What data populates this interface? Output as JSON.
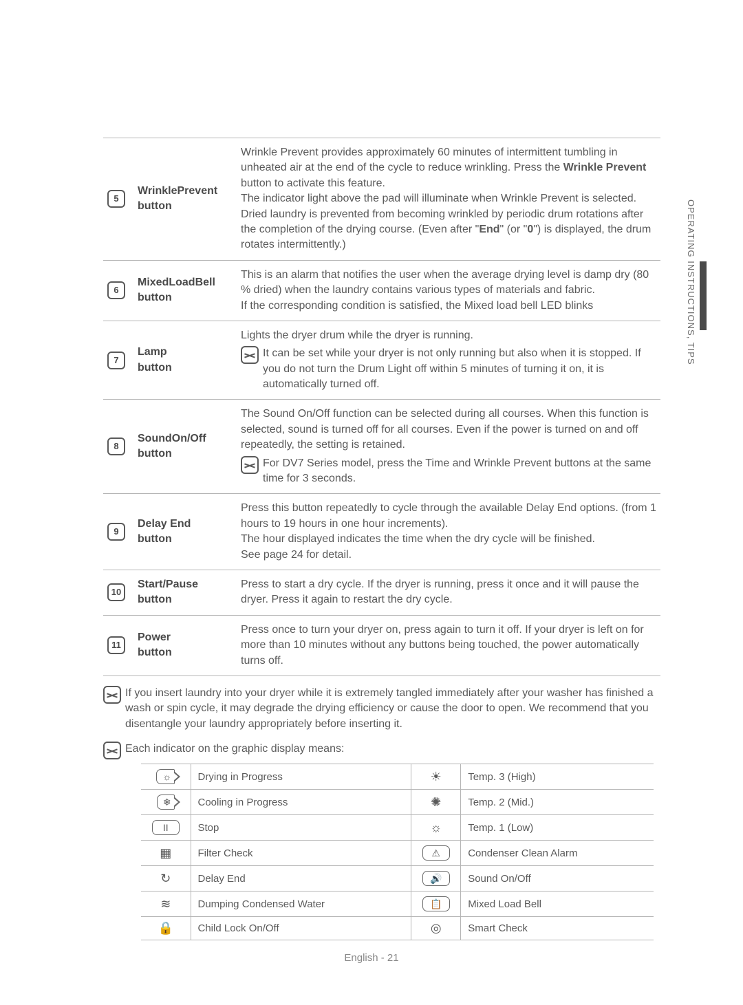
{
  "side_label": "OPERATING INSTRUCTIONS, TIPS",
  "buttons": [
    {
      "num": "5",
      "label": "WrinklePrevent button",
      "desc_html": "Wrinkle Prevent provides approximately 60 minutes of intermittent tumbling in unheated air at the end of the cycle to reduce wrinkling. Press the <b>Wrinkle Prevent</b> button to activate this feature.<br>The indicator light above the pad will illuminate when Wrinkle Prevent is selected. Dried laundry is prevented from becoming wrinkled by periodic drum rotations after the completion of the drying course. (Even after \"<b>End</b>\" (or \"<b>0</b>\") is displayed, the drum rotates intermittently.)"
    },
    {
      "num": "6",
      "label": "MixedLoadBell button",
      "desc_html": "This is an alarm that notifies the user when the average drying level is damp dry (80 % dried) when the laundry contains various types of materials and fabric.<br>If the corresponding condition is satisfied, the Mixed load bell LED blinks"
    },
    {
      "num": "7",
      "label": "Lamp button",
      "desc_html": "Lights the dryer drum while the dryer is running.",
      "note": "It can be set while your dryer is not only running but also when it is stopped. If you do not turn the Drum Light off within 5 minutes of turning it on, it is automatically turned off."
    },
    {
      "num": "8",
      "label": "SoundOn/Off button",
      "desc_html": "The Sound On/Off function can be selected during all courses. When this function is selected, sound is turned off for all courses. Even if the power is turned on and off repeatedly, the setting is retained.",
      "note": "For DV7 Series model, press the Time and Wrinkle Prevent buttons at the same time for 3 seconds."
    },
    {
      "num": "9",
      "label": "Delay End button",
      "desc_html": "Press this button repeatedly to cycle through the available Delay End options. (from 1 hours to 19 hours in one hour increments).<br>The hour displayed indicates the time when the dry cycle will be finished.<br>See page 24 for detail."
    },
    {
      "num": "10",
      "label": "Start/Pause button",
      "desc_html": "Press to start a dry cycle. If the dryer is running, press it once and it will pause the dryer. Press it again to restart the dry cycle."
    },
    {
      "num": "11",
      "label": "Power button",
      "desc_html": "Press once to turn your dryer on, press again to turn it off. If your dryer is left on for more than 10 minutes without any buttons being touched, the power automatically turns off."
    }
  ],
  "tangle_note": "If you insert laundry into your dryer while it is extremely tangled immediately after your washer has finished a wash or spin cycle, it may degrade the drying efficiency or cause the door to open. We recommend that you disentangle your laundry appropriately before inserting it.",
  "indicator_intro": "Each indicator on the graphic display means:",
  "indicators_left": [
    {
      "glyph": "☼",
      "boxed": "arrow",
      "label": "Drying in Progress"
    },
    {
      "glyph": "❄",
      "boxed": "arrow",
      "label": "Cooling in Progress"
    },
    {
      "glyph": "II",
      "boxed": "box",
      "label": "Stop"
    },
    {
      "glyph": "▦",
      "boxed": "none",
      "label": "Filter Check"
    },
    {
      "glyph": "↻",
      "boxed": "none",
      "label": "Delay End"
    },
    {
      "glyph": "≋",
      "boxed": "none",
      "label": "Dumping Condensed Water"
    },
    {
      "glyph": "🔒",
      "boxed": "none",
      "label": "Child Lock On/Off"
    }
  ],
  "indicators_right": [
    {
      "glyph": "☀",
      "boxed": "none",
      "label": "Temp. 3 (High)"
    },
    {
      "glyph": "✺",
      "boxed": "none",
      "label": "Temp. 2 (Mid.)"
    },
    {
      "glyph": "☼",
      "boxed": "none",
      "label": "Temp. 1 (Low)"
    },
    {
      "glyph": "⚠",
      "boxed": "box",
      "label": "Condenser Clean Alarm"
    },
    {
      "glyph": "🔊",
      "boxed": "box",
      "label": "Sound On/Off"
    },
    {
      "glyph": "📋",
      "boxed": "box",
      "label": "Mixed Load Bell"
    },
    {
      "glyph": "◎",
      "boxed": "none",
      "label": "Smart Check"
    }
  ],
  "footer": "English - 21",
  "colors": {
    "text": "#5a5a5a",
    "border": "#b5b5b5",
    "side_bar": "#4a4a4a",
    "bg": "#ffffff"
  }
}
